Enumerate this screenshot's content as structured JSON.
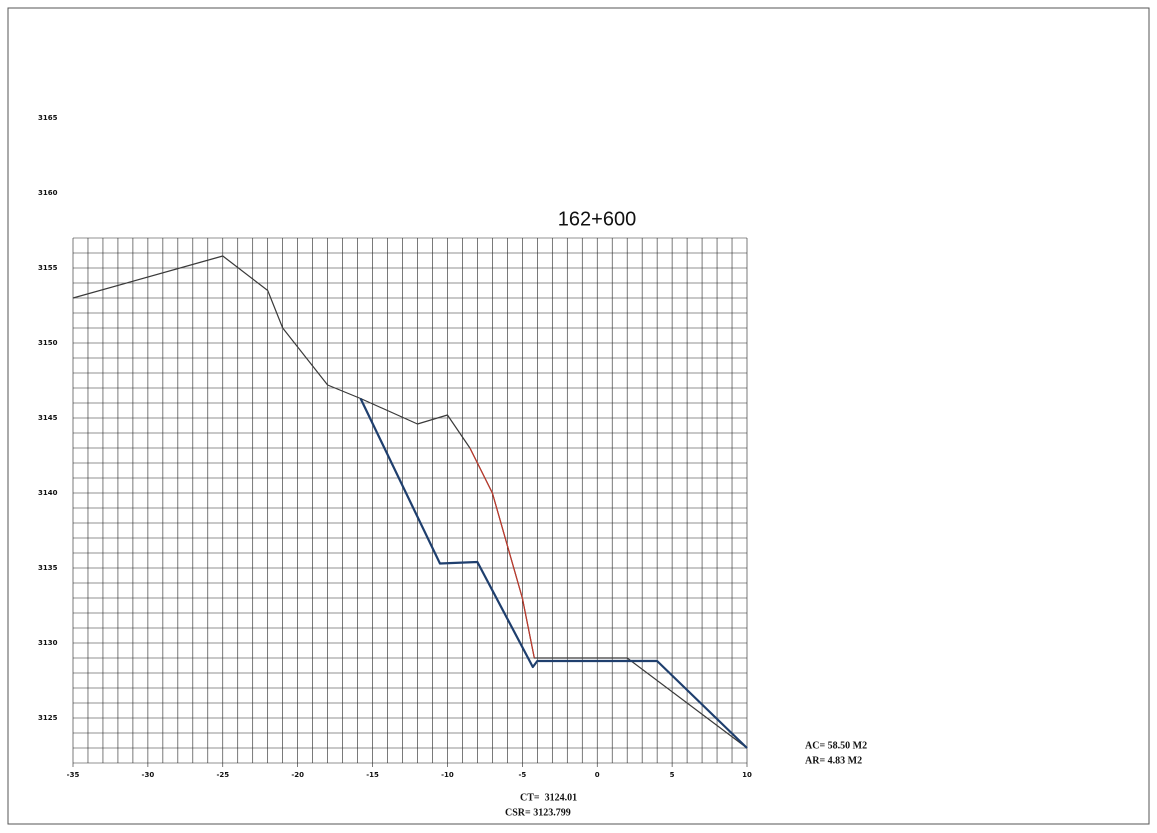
{
  "chart_data": {
    "type": "line",
    "title": "162+600",
    "xlim": [
      -35,
      10
    ],
    "ylim": [
      3122,
      3167
    ],
    "xticks": [
      -35,
      -30,
      -25,
      -20,
      -15,
      -10,
      -5,
      0,
      5,
      10
    ],
    "yticks": [
      3125,
      3130,
      3135,
      3140,
      3145,
      3150,
      3155,
      3160,
      3165
    ],
    "grid": {
      "x_range": [
        -35,
        10
      ],
      "y_range": [
        3122,
        3157
      ],
      "step": 1,
      "color": "#222222"
    },
    "series": [
      {
        "color": "#3a3a3a",
        "width": 1.2,
        "x": [
          -35,
          -25,
          -22,
          -21,
          -18,
          -15.8,
          -12,
          -10,
          -8.5,
          -7,
          -5,
          -4.2,
          2,
          10
        ],
        "values": [
          3153,
          3155.8,
          3153.5,
          3151,
          3147.2,
          3146.3,
          3144.6,
          3145.2,
          3143,
          3140,
          3133,
          3129,
          3129,
          3123
        ]
      },
      {
        "color": "#1f3f6e",
        "width": 2.2,
        "x": [
          -15.8,
          -10.5,
          -8,
          -4.3,
          -4,
          4,
          10
        ],
        "values": [
          3146.3,
          3135.3,
          3135.4,
          3128.4,
          3128.8,
          3128.8,
          3123
        ]
      },
      {
        "color": "#c0392b",
        "width": 1.2,
        "x": [
          -8.5,
          -7,
          -5,
          -4.2
        ],
        "values": [
          3143,
          3140,
          3133,
          3129
        ]
      }
    ],
    "annotations": [
      "AC= 58.50 M2",
      "AR= 4.83 M2",
      "CT=  3124.01",
      "CSR= 3123.799"
    ]
  }
}
